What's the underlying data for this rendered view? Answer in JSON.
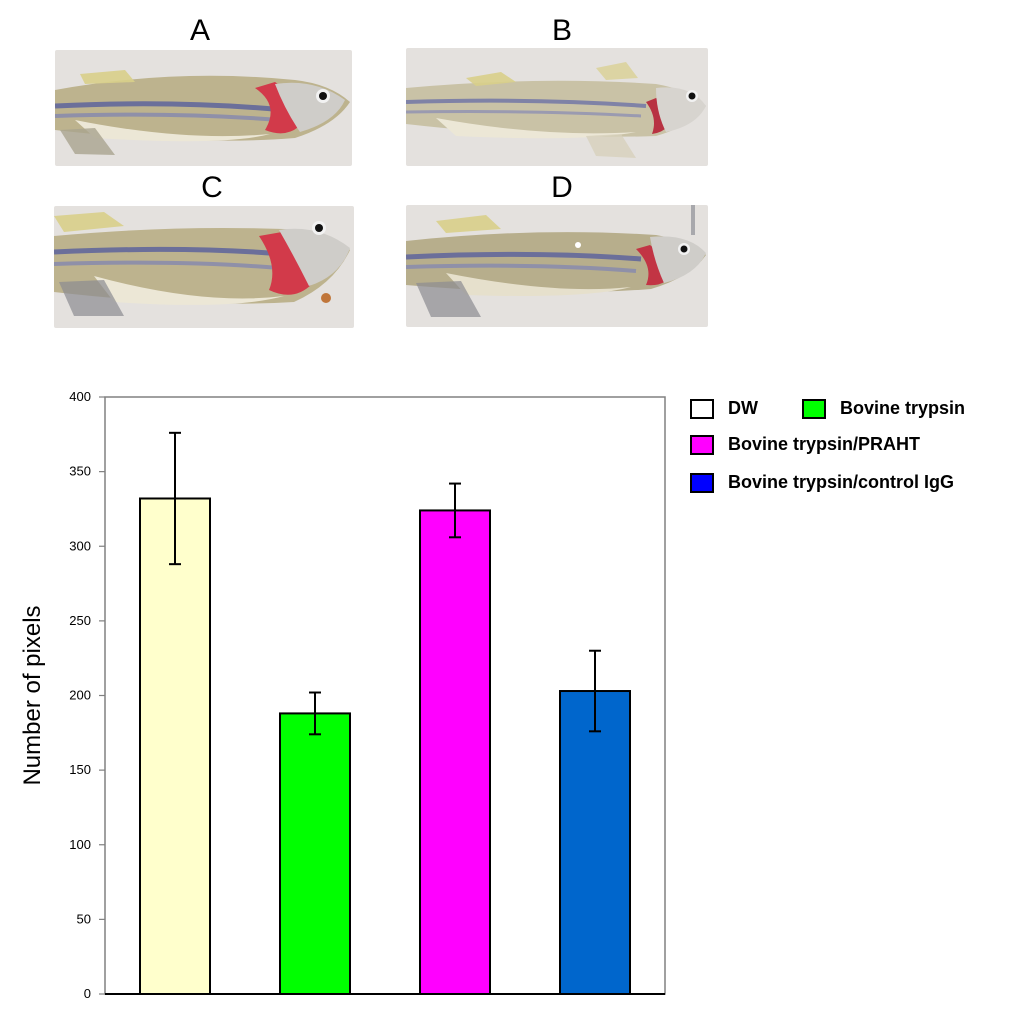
{
  "panels": [
    {
      "label": "A"
    },
    {
      "label": "B"
    },
    {
      "label": "C"
    },
    {
      "label": "D"
    }
  ],
  "legend": [
    {
      "label": "DW",
      "color": "#ffffff"
    },
    {
      "label": "Bovine trypsin",
      "color": "#00ff00"
    },
    {
      "label": "Bovine trypsin/PRAHT",
      "color": "#ff00ff"
    },
    {
      "label": "Bovine trypsin/control IgG",
      "color": "#0000ff"
    }
  ],
  "chart_data": {
    "type": "bar",
    "categories": [
      "DW",
      "Bovine trypsin",
      "Bovine trypsin/PRAHT",
      "Bovine trypsin/control IgG"
    ],
    "values": [
      332,
      188,
      324,
      203
    ],
    "error": [
      44,
      14,
      18,
      27
    ],
    "bar_colors": [
      "#ffffcc",
      "#00ff00",
      "#ff00ff",
      "#0066cc"
    ],
    "title": "",
    "xlabel": "",
    "ylabel": "Number of pixels",
    "ylim": [
      0,
      400
    ],
    "yticks": [
      0,
      50,
      100,
      150,
      200,
      250,
      300,
      350,
      400
    ],
    "grid": false,
    "legend_position": "top-right"
  }
}
